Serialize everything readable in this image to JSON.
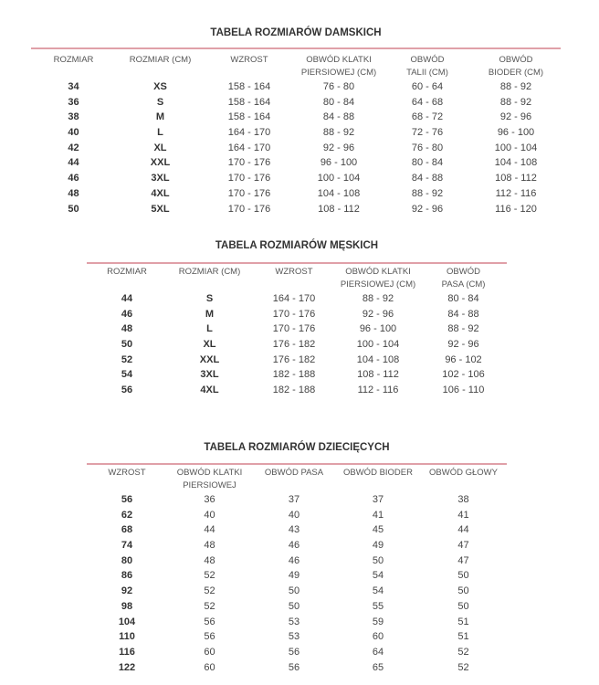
{
  "tables": [
    {
      "title": "TABELA ROZMIARÓW DAMSKICH",
      "headers": [
        "ROZMIAR",
        "ROZMIAR (CM)",
        "WZROST",
        "OBWÓD KLATKI\nPIERSIOWEJ (CM)",
        "OBWÓD\nTALII (CM)",
        "OBWÓD\nBIODER (CM)"
      ],
      "bold_columns": 2,
      "rows": [
        [
          "34",
          "XS",
          "158 - 164",
          "76 - 80",
          "60 - 64",
          "88 - 92"
        ],
        [
          "36",
          "S",
          "158 - 164",
          "80 - 84",
          "64 - 68",
          "88 - 92"
        ],
        [
          "38",
          "M",
          "158 - 164",
          "84 - 88",
          "68 - 72",
          "92 - 96"
        ],
        [
          "40",
          "L",
          "164 - 170",
          "88 - 92",
          "72 - 76",
          "96 - 100"
        ],
        [
          "42",
          "XL",
          "164 - 170",
          "92 - 96",
          "76 - 80",
          "100 - 104"
        ],
        [
          "44",
          "XXL",
          "170 - 176",
          "96 - 100",
          "80 - 84",
          "104 - 108"
        ],
        [
          "46",
          "3XL",
          "170 - 176",
          "100 - 104",
          "84 - 88",
          "108 - 112"
        ],
        [
          "48",
          "4XL",
          "170 - 176",
          "104 - 108",
          "88 - 92",
          "112 - 116"
        ],
        [
          "50",
          "5XL",
          "170 - 176",
          "108 - 112",
          "92 - 96",
          "116 - 120"
        ]
      ]
    },
    {
      "title": "TABELA ROZMIARÓW MĘSKICH",
      "headers": [
        "ROZMIAR",
        "ROZMIAR (CM)",
        "WZROST",
        "OBWÓD KLATKI\nPIERSIOWEJ (CM)",
        "OBWÓD\nPASA (CM)"
      ],
      "bold_columns": 2,
      "rows": [
        [
          "44",
          "S",
          "164 - 170",
          "88 - 92",
          "80 - 84"
        ],
        [
          "46",
          "M",
          "170 - 176",
          "92 - 96",
          "84 - 88"
        ],
        [
          "48",
          "L",
          "170 - 176",
          "96 - 100",
          "88 - 92"
        ],
        [
          "50",
          "XL",
          "176 - 182",
          "100 - 104",
          "92 - 96"
        ],
        [
          "52",
          "XXL",
          "176 - 182",
          "104 - 108",
          "96 - 102"
        ],
        [
          "54",
          "3XL",
          "182 - 188",
          "108 - 112",
          "102 - 106"
        ],
        [
          "56",
          "4XL",
          "182 - 188",
          "112 - 116",
          "106 - 110"
        ]
      ]
    },
    {
      "title": "TABELA ROZMIARÓW DZIECIĘCYCH",
      "headers": [
        "WZROST",
        "OBWÓD KLATKI\nPIERSIOWEJ",
        "OBWÓD PASA",
        "OBWÓD BIODER",
        "OBWÓD GŁOWY"
      ],
      "bold_columns": 1,
      "rows": [
        [
          "56",
          "36",
          "37",
          "37",
          "38"
        ],
        [
          "62",
          "40",
          "40",
          "41",
          "41"
        ],
        [
          "68",
          "44",
          "43",
          "45",
          "44"
        ],
        [
          "74",
          "48",
          "46",
          "49",
          "47"
        ],
        [
          "80",
          "48",
          "46",
          "50",
          "47"
        ],
        [
          "86",
          "52",
          "49",
          "54",
          "50"
        ],
        [
          "92",
          "52",
          "50",
          "54",
          "50"
        ],
        [
          "98",
          "52",
          "50",
          "55",
          "50"
        ],
        [
          "104",
          "56",
          "53",
          "59",
          "51"
        ],
        [
          "110",
          "56",
          "53",
          "60",
          "51"
        ],
        [
          "116",
          "60",
          "56",
          "64",
          "52"
        ],
        [
          "122",
          "60",
          "56",
          "65",
          "52"
        ]
      ]
    }
  ],
  "colors": {
    "rule": "#e0a0a8",
    "text": "#333333"
  }
}
